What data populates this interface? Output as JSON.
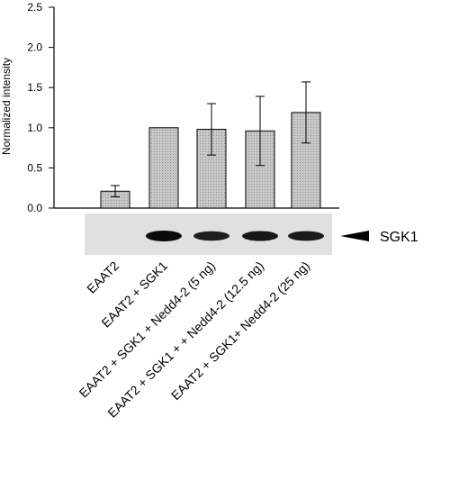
{
  "chart_data": {
    "type": "bar",
    "title": "",
    "xlabel": "",
    "ylabel": "Normalized intensity",
    "ylim": [
      0,
      2.5
    ],
    "yticks": [
      "0.0",
      "0.5",
      "1.0",
      "1.5",
      "2.0",
      "2.5"
    ],
    "grid": false,
    "categories": [
      "EAAT2",
      "EAAT2 + SGK1",
      "EAAT2 + SGK1 + Nedd4-2 (5 ng)",
      "EAAT2 + SGK1 + + Nedd4-2 (12.5 ng)",
      "EAAT2 + SGK1+ Nedd4-2 (25 ng)"
    ],
    "values": [
      0.21,
      1.0,
      0.98,
      0.96,
      1.19
    ],
    "errors": [
      0.07,
      0.0,
      0.32,
      0.43,
      0.38
    ],
    "bar_fill": "#c8c8c8",
    "blot": {
      "label": "SGK1",
      "band_intensity": [
        0.0,
        1.0,
        0.75,
        0.85,
        0.8
      ]
    }
  }
}
